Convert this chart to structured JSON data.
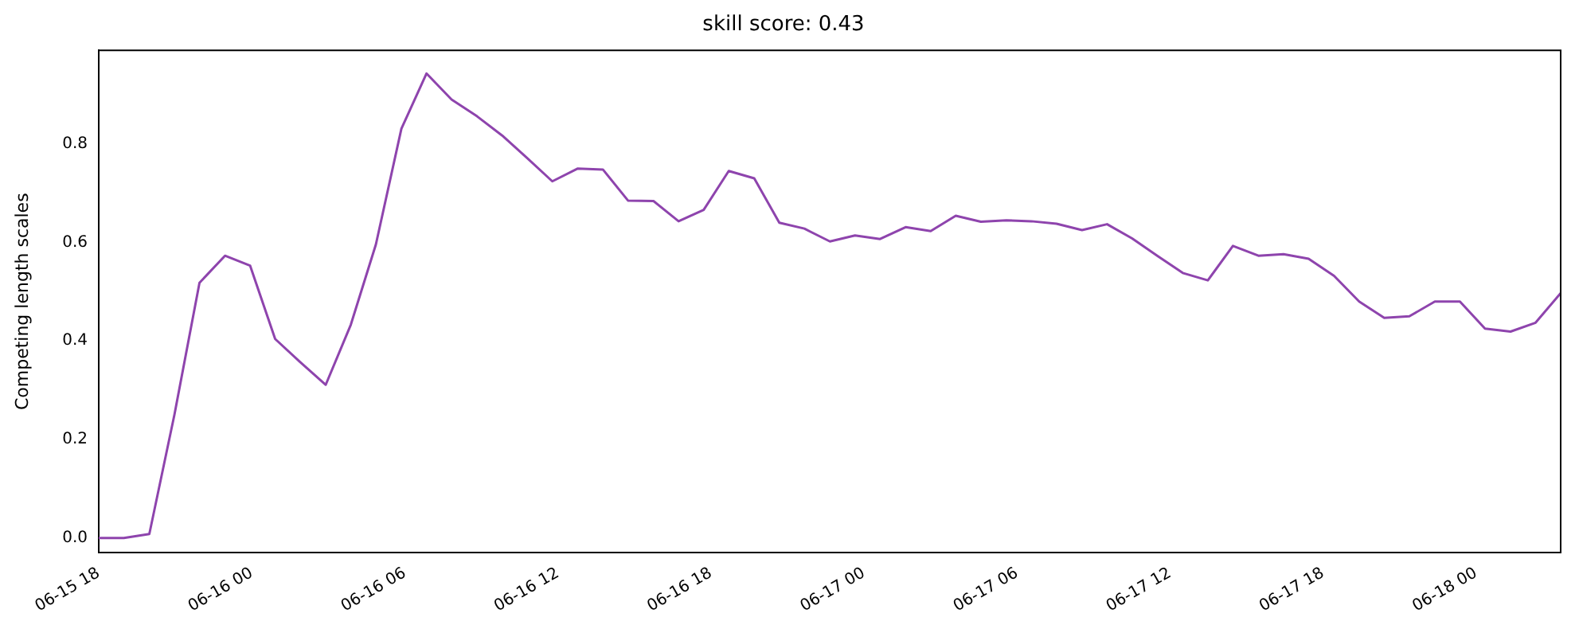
{
  "chart_data": {
    "type": "line",
    "title": "skill score: 0.43",
    "ylabel": "Competing length scales",
    "x": [
      "--06-15T18:00",
      "--06-15T18:59",
      "--06-15T19:59",
      "--06-15T20:58",
      "--06-15T21:57",
      "--06-15T22:57",
      "--06-15T23:56",
      "--06-16T00:55",
      "--06-16T01:54",
      "--06-16T02:54",
      "--06-16T03:53",
      "--06-16T04:52",
      "--06-16T05:52",
      "--06-16T06:51",
      "--06-16T07:50",
      "--06-16T08:50",
      "--06-16T09:49",
      "--06-16T10:48",
      "--06-16T11:47",
      "--06-16T12:47",
      "--06-16T13:46",
      "--06-16T14:45",
      "--06-16T15:45",
      "--06-16T16:44",
      "--06-16T17:43",
      "--06-16T18:42",
      "--06-16T19:42",
      "--06-16T20:41",
      "--06-16T21:40",
      "--06-16T22:40",
      "--06-16T23:39",
      "--06-17T00:38",
      "--06-17T01:38",
      "--06-17T02:37",
      "--06-17T03:36",
      "--06-17T04:35",
      "--06-17T05:35",
      "--06-17T06:34",
      "--06-17T07:33",
      "--06-17T08:33",
      "--06-17T09:32",
      "--06-17T10:31",
      "--06-17T11:30",
      "--06-17T12:30",
      "--06-17T13:29",
      "--06-17T14:28",
      "--06-17T15:28",
      "--06-17T16:27",
      "--06-17T17:26",
      "--06-17T18:26",
      "--06-17T19:25",
      "--06-17T20:24",
      "--06-17T21:23",
      "--06-17T22:23",
      "--06-17T23:22",
      "--06-18T00:21",
      "--06-18T01:21",
      "--06-18T02:20",
      "--06-18T03:19"
    ],
    "series": [
      {
        "color": "#8e44ad",
        "values": [
          0.0,
          0.0,
          0.008,
          0.25,
          0.518,
          0.573,
          0.553,
          0.404,
          0.357,
          0.311,
          0.433,
          0.596,
          0.831,
          0.943,
          0.89,
          0.856,
          0.817,
          0.771,
          0.724,
          0.75,
          0.748,
          0.685,
          0.684,
          0.643,
          0.666,
          0.745,
          0.73,
          0.64,
          0.628,
          0.602,
          0.614,
          0.607,
          0.631,
          0.623,
          0.654,
          0.642,
          0.645,
          0.643,
          0.638,
          0.625,
          0.637,
          0.608,
          0.573,
          0.538,
          0.523,
          0.593,
          0.573,
          0.576,
          0.567,
          0.532,
          0.48,
          0.447,
          0.45,
          0.48,
          0.48,
          0.425,
          0.419,
          0.437,
          0.497
        ]
      }
    ],
    "xlim": [
      "--06-15T18:00",
      "--06-18T03:19"
    ],
    "xticks": [
      {
        "value": "--06-15T18:00",
        "label": "06-15 18"
      },
      {
        "value": "--06-16T00:00",
        "label": "06-16 00"
      },
      {
        "value": "--06-16T06:00",
        "label": "06-16 06"
      },
      {
        "value": "--06-16T12:00",
        "label": "06-16 12"
      },
      {
        "value": "--06-16T18:00",
        "label": "06-16 18"
      },
      {
        "value": "--06-17T00:00",
        "label": "06-17 00"
      },
      {
        "value": "--06-17T06:00",
        "label": "06-17 06"
      },
      {
        "value": "--06-17T12:00",
        "label": "06-17 12"
      },
      {
        "value": "--06-17T18:00",
        "label": "06-17 18"
      },
      {
        "value": "--06-18T00:00",
        "label": "06-18 00"
      }
    ],
    "ylim": [
      -0.03,
      0.99
    ],
    "yticks": [
      {
        "value": 0,
        "label": "0.0"
      },
      {
        "value": 0.2,
        "label": "0.2"
      },
      {
        "value": 0.4,
        "label": "0.4"
      },
      {
        "value": 0.6,
        "label": "0.6"
      },
      {
        "value": 0.8,
        "label": "0.8"
      }
    ],
    "grid": false,
    "legend": false,
    "marker": "none",
    "line_style": "solid"
  }
}
